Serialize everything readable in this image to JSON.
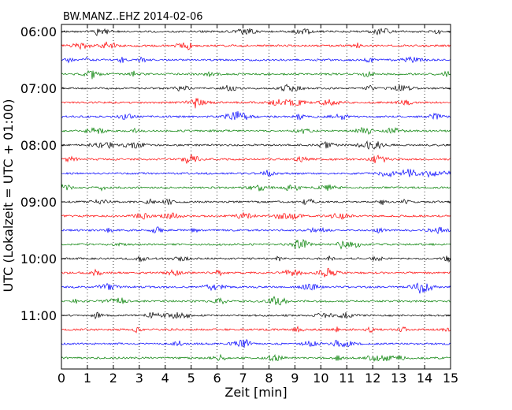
{
  "chart_data": {
    "type": "line",
    "title": "BW.MANZ..EHZ 2014-02-06",
    "xlabel": "Zeit  [min]",
    "ylabel": "UTC (Lokalzeit = UTC + 01:00)",
    "xlim": [
      0,
      15
    ],
    "x_ticks": [
      "0",
      "1",
      "2",
      "3",
      "4",
      "5",
      "6",
      "7",
      "8",
      "9",
      "10",
      "11",
      "12",
      "13",
      "14",
      "15"
    ],
    "y_tick_labels": [
      "06:00",
      "07:00",
      "08:00",
      "09:00",
      "10:00",
      "11:00"
    ],
    "trace_count": 24,
    "trace_start": "06:00",
    "trace_interval_min": 15,
    "trace_colors": [
      "#000000",
      "#ff0000",
      "#0000ff",
      "#007f00"
    ],
    "grid": "vertical dotted at every minute",
    "legend": "none"
  }
}
